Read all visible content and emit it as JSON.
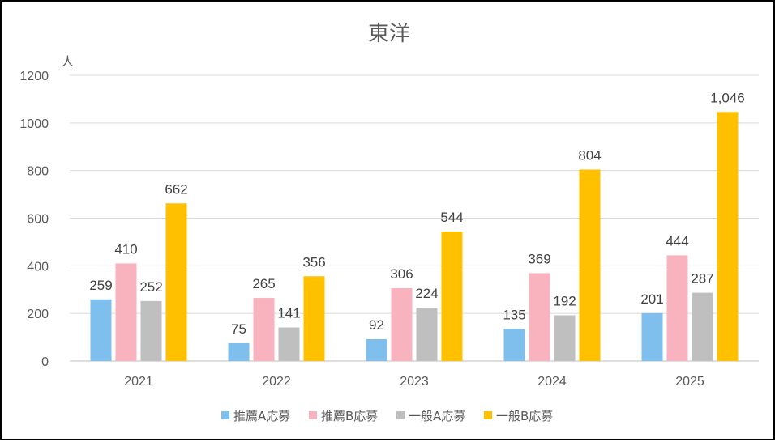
{
  "chart_data": {
    "type": "bar",
    "title": "東洋",
    "unit_label": "人",
    "categories": [
      "2021",
      "2022",
      "2023",
      "2024",
      "2025"
    ],
    "series": [
      {
        "name": "推薦A応募",
        "color": "#7fbfee",
        "values": [
          259,
          75,
          92,
          135,
          201
        ],
        "labels": [
          "259",
          "75",
          "92",
          "135",
          "201"
        ]
      },
      {
        "name": "推薦B応募",
        "color": "#f9b3be",
        "values": [
          410,
          265,
          306,
          369,
          444
        ],
        "labels": [
          "410",
          "265",
          "306",
          "369",
          "444"
        ]
      },
      {
        "name": "一般A応募",
        "color": "#bfbfbf",
        "values": [
          252,
          141,
          224,
          192,
          287
        ],
        "labels": [
          "252",
          "141",
          "224",
          "192",
          "287"
        ]
      },
      {
        "name": "一般B応募",
        "color": "#ffc000",
        "values": [
          662,
          356,
          544,
          804,
          1046
        ],
        "labels": [
          "662",
          "356",
          "544",
          "804",
          "1,046"
        ]
      }
    ],
    "ylim": [
      0,
      1200
    ],
    "yticks": [
      "0",
      "200",
      "400",
      "600",
      "800",
      "1000",
      "1200"
    ],
    "grid": true,
    "legend_position": "bottom"
  }
}
